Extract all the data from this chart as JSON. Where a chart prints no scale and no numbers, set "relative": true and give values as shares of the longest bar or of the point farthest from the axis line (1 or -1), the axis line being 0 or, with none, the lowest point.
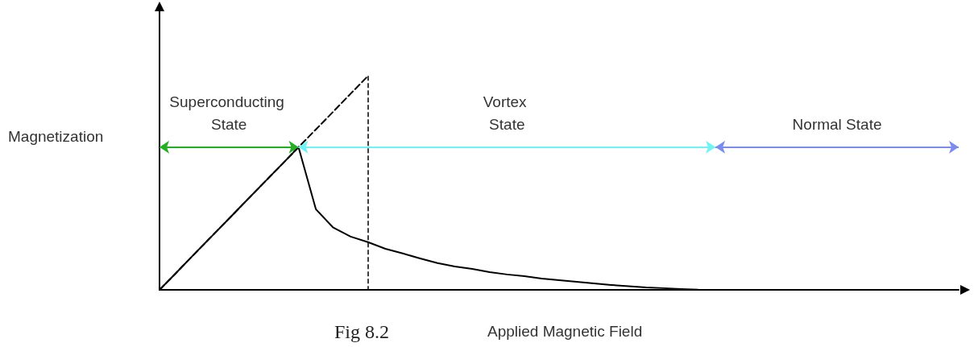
{
  "chart_data": {
    "type": "line",
    "relative": true,
    "xlabel": "Applied Magnetic Field",
    "ylabel": "Magnetization",
    "annotations": [
      "Superconducting State",
      "Vortex State",
      "Normal State",
      "Fig 8.2"
    ],
    "categories": [
      null,
      null,
      null,
      null,
      null,
      null,
      null,
      null,
      null,
      null,
      null,
      null,
      null,
      null,
      null,
      null,
      null,
      null,
      null,
      null,
      null,
      null,
      null,
      null,
      null,
      null,
      null,
      null,
      null,
      null,
      null,
      null,
      null,
      null,
      null,
      null,
      null,
      null,
      null,
      null,
      null,
      null,
      null,
      null,
      null,
      null,
      null
    ],
    "series": [
      {
        "color": "#000000",
        "line_style": "solid",
        "values": [
          0,
          0.083,
          0.167,
          0.25,
          0.333,
          0.417,
          0.5,
          0.583,
          0.667,
          0.377,
          0.291,
          0.249,
          0.223,
          0.192,
          0.17,
          0.147,
          0.125,
          0.109,
          0.098,
          0.083,
          0.072,
          0.064,
          0.053,
          0.045,
          0.038,
          0.03,
          0.023,
          0.017,
          0.011,
          0.008,
          0.004,
          0.001,
          0,
          null,
          null,
          null,
          null,
          null,
          null,
          null,
          null,
          null,
          null,
          null,
          null,
          null,
          null
        ]
      },
      {
        "color": "#000000",
        "line_style": "dashed",
        "values": [
          0,
          0.083,
          0.167,
          0.25,
          0.333,
          0.417,
          0.5,
          0.583,
          0.667,
          0.75,
          0.833,
          0.917,
          1,
          null,
          null,
          null,
          null,
          null,
          null,
          null,
          null,
          null,
          null,
          null,
          null,
          null,
          null,
          null,
          null,
          null,
          null,
          null,
          null,
          null,
          null,
          null,
          null,
          null,
          null,
          null,
          null,
          null,
          null,
          null,
          null,
          null,
          null
        ]
      }
    ],
    "marker": "none"
  }
}
